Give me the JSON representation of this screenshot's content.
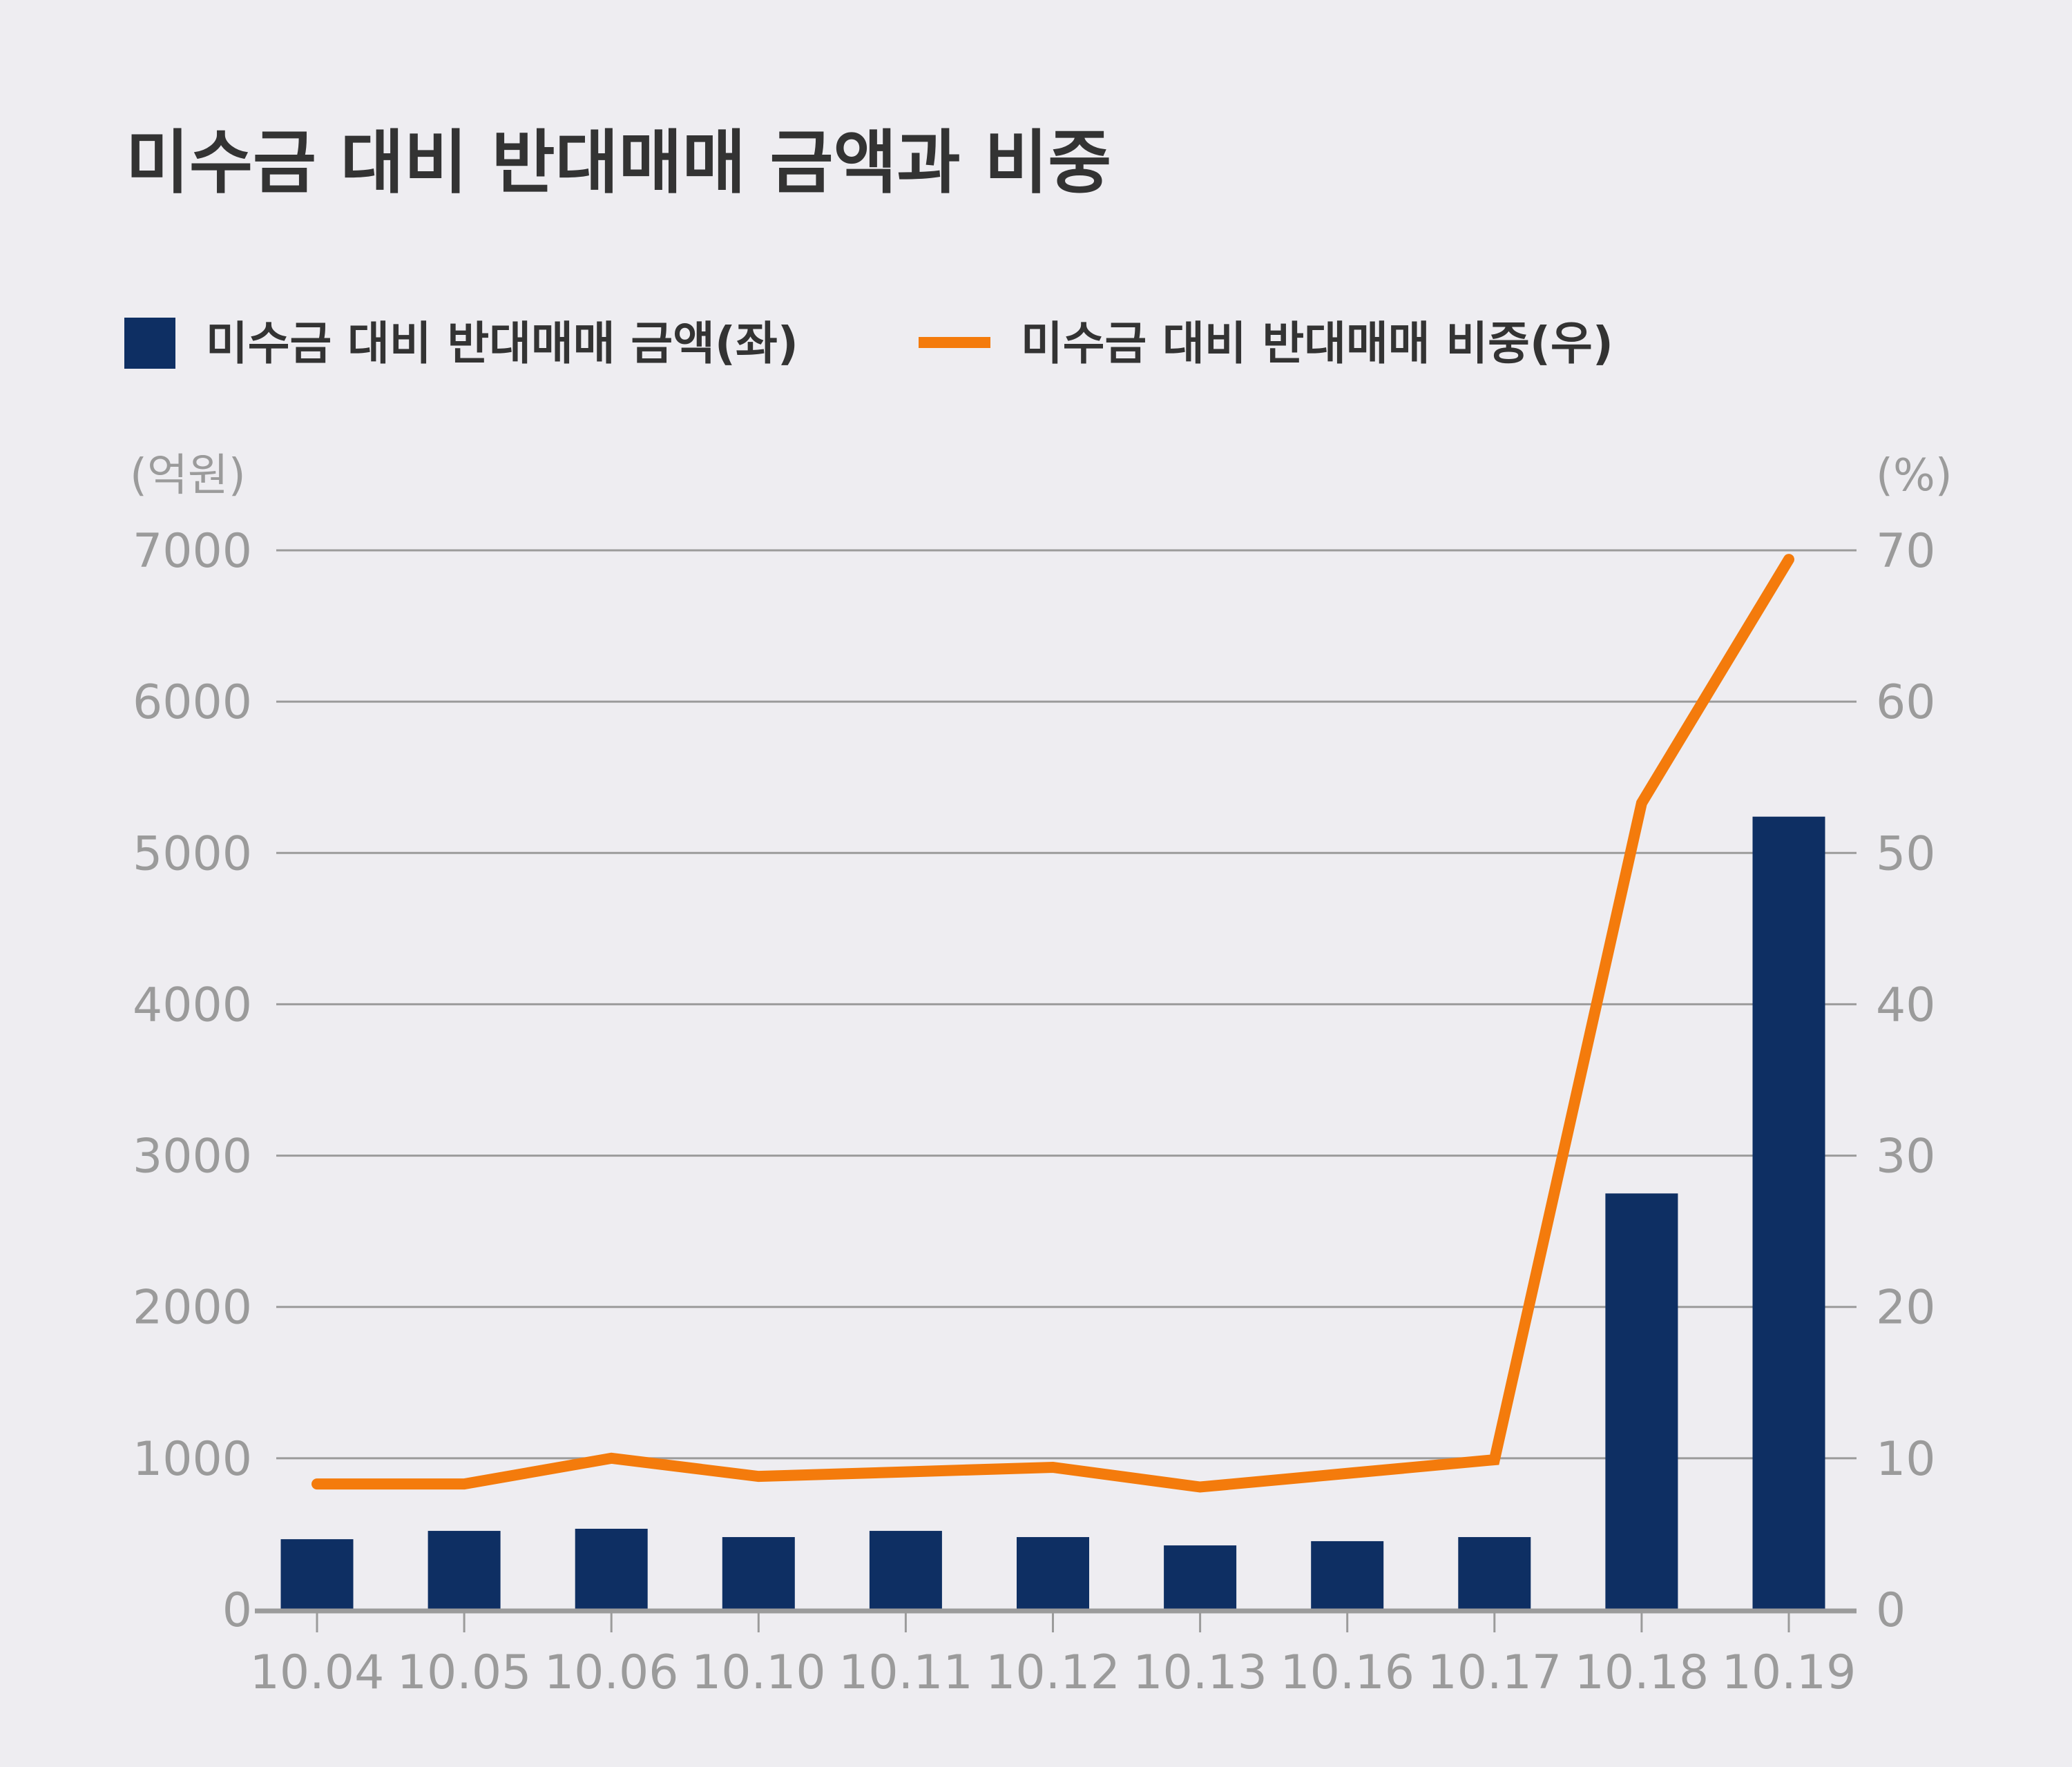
{
  "chart_data": {
    "type": "bar+line",
    "title": "미수금 대비 반대매매 금액과 비중",
    "categories": [
      "10.04",
      "10.05",
      "10.06",
      "10.10",
      "10.11",
      "10.12",
      "10.13",
      "10.16",
      "10.17",
      "10.18",
      "10.19"
    ],
    "series": [
      {
        "name": "미수금 대비 반대매매 금액(좌)",
        "type": "bar",
        "axis": "left",
        "color": "#0e2f63",
        "values": [
          465,
          520,
          534,
          479,
          520,
          479,
          424,
          452,
          479,
          2750,
          5240
        ]
      },
      {
        "name": "미수금 대비 반대매매 비중(우)",
        "type": "line",
        "axis": "right",
        "color": "#f47b0c",
        "values": [
          8.3,
          8.3,
          10.0,
          8.8,
          9.1,
          9.4,
          8.1,
          9.0,
          9.9,
          53.3,
          69.4
        ]
      }
    ],
    "ylabel_left": "(억원)",
    "ylabel_right": "(%)",
    "ylim_left": [
      0,
      7000
    ],
    "ylim_right": [
      0,
      70
    ],
    "yticks_left": [
      "0",
      "1000",
      "2000",
      "3000",
      "4000",
      "5000",
      "6000",
      "7000"
    ],
    "yticks_right": [
      "0",
      "10",
      "20",
      "30",
      "40",
      "50",
      "60",
      "70"
    ],
    "grid": true,
    "legend_position": "top-left"
  }
}
